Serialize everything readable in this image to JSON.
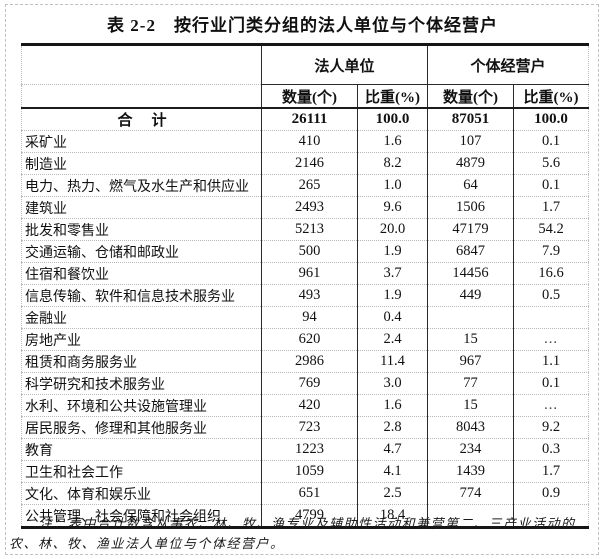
{
  "title": "表 2-2　按行业门类分组的法人单位与个体经营户",
  "table": {
    "group_headers": [
      "法人单位",
      "个体经营户"
    ],
    "sub_headers": [
      "数量(个)",
      "比重(%)",
      "数量(个)",
      "比重(%)"
    ],
    "total": {
      "label": "合　计",
      "values": [
        "26111",
        "100.0",
        "87051",
        "100.0"
      ]
    },
    "rows": [
      {
        "label": "采矿业",
        "values": [
          "410",
          "1.6",
          "107",
          "0.1"
        ]
      },
      {
        "label": "制造业",
        "values": [
          "2146",
          "8.2",
          "4879",
          "5.6"
        ]
      },
      {
        "label": "电力、热力、燃气及水生产和供应业",
        "values": [
          "265",
          "1.0",
          "64",
          "0.1"
        ]
      },
      {
        "label": "建筑业",
        "values": [
          "2493",
          "9.6",
          "1506",
          "1.7"
        ]
      },
      {
        "label": "批发和零售业",
        "values": [
          "5213",
          "20.0",
          "47179",
          "54.2"
        ]
      },
      {
        "label": "交通运输、仓储和邮政业",
        "values": [
          "500",
          "1.9",
          "6847",
          "7.9"
        ]
      },
      {
        "label": "住宿和餐饮业",
        "values": [
          "961",
          "3.7",
          "14456",
          "16.6"
        ]
      },
      {
        "label": "信息传输、软件和信息技术服务业",
        "values": [
          "493",
          "1.9",
          "449",
          "0.5"
        ]
      },
      {
        "label": "金融业",
        "values": [
          "94",
          "0.4",
          "",
          ""
        ]
      },
      {
        "label": "房地产业",
        "values": [
          "620",
          "2.4",
          "15",
          "..."
        ]
      },
      {
        "label": "租赁和商务服务业",
        "values": [
          "2986",
          "11.4",
          "967",
          "1.1"
        ]
      },
      {
        "label": "科学研究和技术服务业",
        "values": [
          "769",
          "3.0",
          "77",
          "0.1"
        ]
      },
      {
        "label": "水利、环境和公共设施管理业",
        "values": [
          "420",
          "1.6",
          "15",
          "..."
        ]
      },
      {
        "label": "居民服务、修理和其他服务业",
        "values": [
          "723",
          "2.8",
          "8043",
          "9.2"
        ]
      },
      {
        "label": "教育",
        "values": [
          "1223",
          "4.7",
          "234",
          "0.3"
        ]
      },
      {
        "label": "卫生和社会工作",
        "values": [
          "1059",
          "4.1",
          "1439",
          "1.7"
        ]
      },
      {
        "label": "文化、体育和娱乐业",
        "values": [
          "651",
          "2.5",
          "774",
          "0.9"
        ]
      },
      {
        "label": "公共管理、社会保障和社会组织",
        "values": [
          "4799",
          "18.4",
          "",
          ""
        ]
      }
    ]
  },
  "note": {
    "lines": [
      "注：表中合计数含从事农、林、牧、渔专业及辅助性活动和兼营第二、三产业活动的",
      "农、林、牧、渔业法人单位与个体经营户。"
    ]
  },
  "colors": {
    "text": "#111111",
    "solid_border": "#1c1c1c",
    "dotted_grid": "#b9b9b9",
    "background": "#ffffff"
  }
}
